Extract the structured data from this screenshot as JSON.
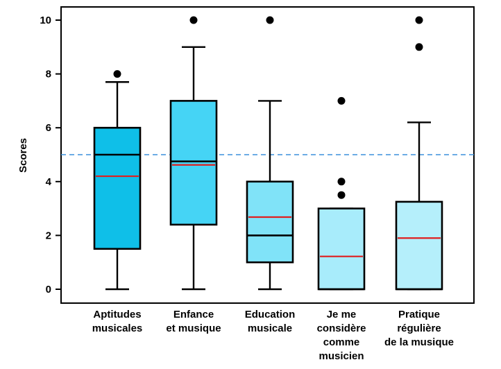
{
  "chart_data": {
    "type": "box",
    "title": "",
    "xlabel": "",
    "ylabel": "Scores",
    "ylim": [
      -0.4,
      10.6
    ],
    "yticks": [
      0,
      2,
      4,
      6,
      8,
      10
    ],
    "reference_line": {
      "y": 5.0,
      "color": "#3b8fdc",
      "style": "dashed"
    },
    "median_color": "#000000",
    "mean_color": "#e01e1e",
    "categories": [
      {
        "label_lines": [
          "Aptitudes",
          "musicales"
        ],
        "color": "#0fbfe8",
        "whisker_low": 0,
        "q1": 1.5,
        "median": 5.0,
        "mean": 4.2,
        "q3": 6.0,
        "whisker_high": 7.7,
        "outliers": [
          8
        ]
      },
      {
        "label_lines": [
          "Enfance",
          "et musique"
        ],
        "color": "#45d4f5",
        "whisker_low": 0,
        "q1": 2.4,
        "median": 4.75,
        "mean": 4.62,
        "q3": 7.0,
        "whisker_high": 9.0,
        "outliers": [
          10
        ]
      },
      {
        "label_lines": [
          "Education",
          "musicale"
        ],
        "color": "#80e3f8",
        "whisker_low": 0,
        "q1": 1.0,
        "median": 2.0,
        "mean": 2.68,
        "q3": 4.0,
        "whisker_high": 7.0,
        "outliers": [
          10
        ]
      },
      {
        "label_lines": [
          "Je me",
          "considère",
          "comme",
          "musicien"
        ],
        "color": "#a8ecfb",
        "whisker_low": 0,
        "q1": 0,
        "median": 0,
        "mean": 1.22,
        "q3": 3.0,
        "whisker_high": 3.0,
        "outliers": [
          3.5,
          4.0,
          7.0
        ]
      },
      {
        "label_lines": [
          "Pratique",
          "régulière",
          "de la musique"
        ],
        "color": "#b5effb",
        "whisker_low": 0,
        "q1": 0,
        "median": 0,
        "mean": 1.9,
        "q3": 3.25,
        "whisker_high": 6.2,
        "outliers": [
          9,
          10
        ]
      }
    ]
  }
}
